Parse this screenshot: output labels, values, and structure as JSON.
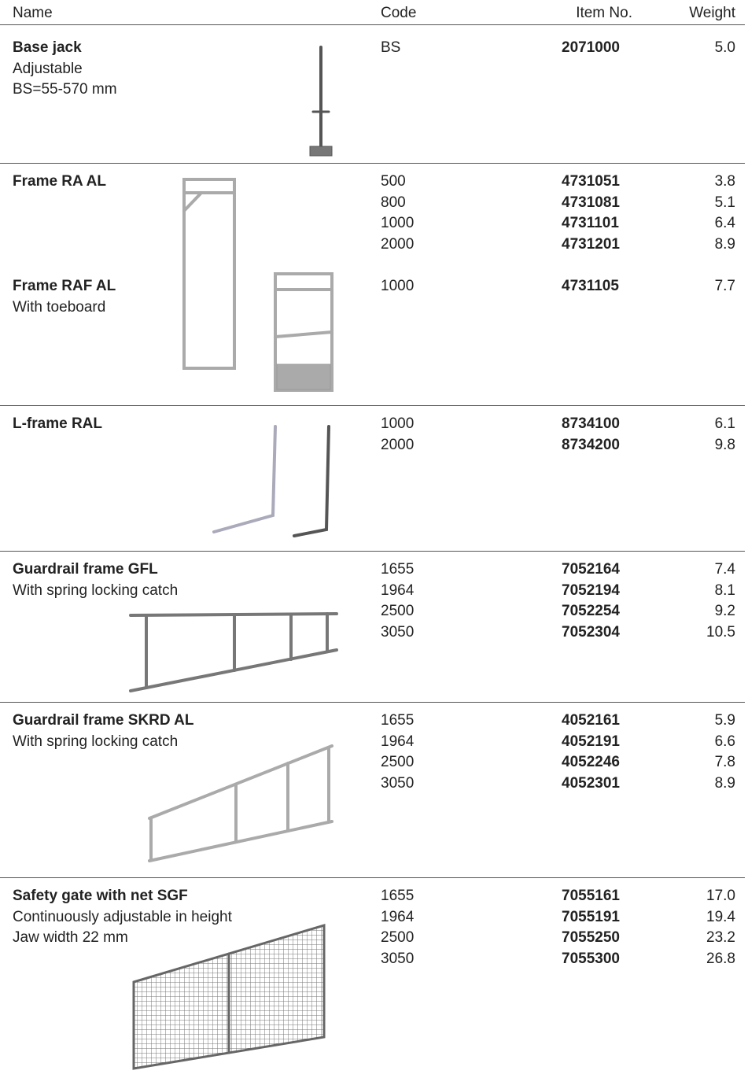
{
  "header": [
    "Name",
    "Code",
    "Item No.",
    "Weight"
  ],
  "sections": [
    {
      "groups": [
        {
          "title": "Base jack",
          "lines": [
            "Adjustable",
            "BS=55-570 mm"
          ],
          "rows": [
            [
              "BS",
              "2071000",
              "5.0"
            ]
          ]
        }
      ]
    },
    {
      "groups": [
        {
          "title": "Frame RA AL",
          "lines": [],
          "rows": [
            [
              "500",
              "4731051",
              "3.8"
            ],
            [
              "800",
              "4731081",
              "5.1"
            ],
            [
              "1000",
              "4731101",
              "6.4"
            ],
            [
              "2000",
              "4731201",
              "8.9"
            ]
          ]
        },
        {
          "title": "Frame RAF AL",
          "lines": [
            "With toeboard"
          ],
          "rows": [
            [
              "1000",
              "4731105",
              "7.7"
            ]
          ]
        }
      ]
    },
    {
      "groups": [
        {
          "title": "L-frame RAL",
          "lines": [],
          "rows": [
            [
              "1000",
              "8734100",
              "6.1"
            ],
            [
              "2000",
              "8734200",
              "9.8"
            ]
          ]
        }
      ]
    },
    {
      "groups": [
        {
          "title": "Guardrail frame GFL",
          "lines": [
            "With spring locking catch"
          ],
          "rows": [
            [
              "1655",
              "7052164",
              "7.4"
            ],
            [
              "1964",
              "7052194",
              "8.1"
            ],
            [
              "2500",
              "7052254",
              "9.2"
            ],
            [
              "3050",
              "7052304",
              "10.5"
            ]
          ]
        }
      ]
    },
    {
      "groups": [
        {
          "title": "Guardrail frame SKRD AL",
          "lines": [
            "With spring locking catch"
          ],
          "rows": [
            [
              "1655",
              "4052161",
              "5.9"
            ],
            [
              "1964",
              "4052191",
              "6.6"
            ],
            [
              "2500",
              "4052246",
              "7.8"
            ],
            [
              "3050",
              "4052301",
              "8.9"
            ]
          ]
        }
      ]
    },
    {
      "groups": [
        {
          "title": "Safety gate with net SGF",
          "lines": [
            "Continuously adjustable in height",
            "Jaw width 22 mm"
          ],
          "rows": [
            [
              "1655",
              "7055161",
              "17.0"
            ],
            [
              "1964",
              "7055191",
              "19.4"
            ],
            [
              "2500",
              "7055250",
              "23.2"
            ],
            [
              "3050",
              "7055300",
              "26.8"
            ]
          ]
        }
      ]
    }
  ]
}
